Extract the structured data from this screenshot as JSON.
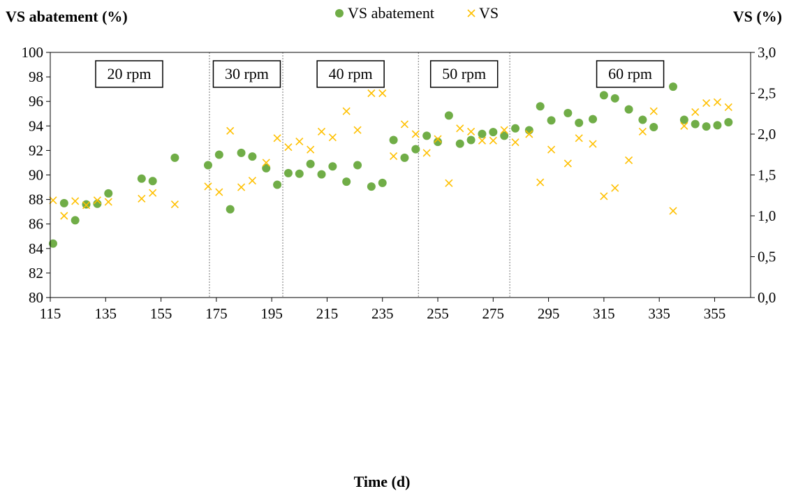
{
  "chart_data": {
    "type": "scatter",
    "left_axis_title": "VS abatement (%)",
    "right_axis_title": "VS (%)",
    "xlabel": "Time (d)",
    "xlim": [
      115,
      368
    ],
    "xticks": [
      115,
      135,
      155,
      175,
      195,
      215,
      235,
      255,
      275,
      295,
      315,
      335,
      355
    ],
    "y_left": {
      "lim": [
        80,
        100
      ],
      "ticks": [
        "80",
        "82",
        "84",
        "86",
        "88",
        "90",
        "92",
        "94",
        "96",
        "98",
        "100"
      ]
    },
    "y_right": {
      "lim": [
        0,
        3
      ],
      "ticks": [
        "0,0",
        "0,5",
        "1,0",
        "1,5",
        "2,0",
        "2,5",
        "3,0"
      ]
    },
    "grid": false,
    "legend_position": "top-center",
    "phase_boundaries": [
      172.5,
      199,
      248,
      281
    ],
    "phases": [
      {
        "label": "20 rpm",
        "x_center": 143.5
      },
      {
        "label": "30 rpm",
        "x_center": 186
      },
      {
        "label": "40 rpm",
        "x_center": 223.5
      },
      {
        "label": "50 rpm",
        "x_center": 264.5
      },
      {
        "label": "60 rpm",
        "x_center": 324.5
      }
    ],
    "series": [
      {
        "name": "VS abatement",
        "axis": "left",
        "marker": "circle",
        "color": "#70ad47",
        "points": [
          [
            116,
            84.4
          ],
          [
            120,
            87.7
          ],
          [
            124,
            86.3
          ],
          [
            128,
            87.6
          ],
          [
            132,
            87.65
          ],
          [
            136,
            88.5
          ],
          [
            148,
            89.7
          ],
          [
            152,
            89.5
          ],
          [
            160,
            91.4
          ],
          [
            172,
            90.8
          ],
          [
            176,
            91.65
          ],
          [
            180,
            87.2
          ],
          [
            184,
            91.8
          ],
          [
            188,
            91.5
          ],
          [
            193,
            90.55
          ],
          [
            197,
            89.2
          ],
          [
            201,
            90.15
          ],
          [
            205,
            90.1
          ],
          [
            209,
            90.9
          ],
          [
            213,
            90.05
          ],
          [
            217,
            90.7
          ],
          [
            222,
            89.45
          ],
          [
            226,
            90.8
          ],
          [
            231,
            89.05
          ],
          [
            235,
            89.35
          ],
          [
            239,
            92.85
          ],
          [
            243,
            91.4
          ],
          [
            247,
            92.1
          ],
          [
            251,
            93.2
          ],
          [
            255,
            92.7
          ],
          [
            259,
            94.85
          ],
          [
            263,
            92.55
          ],
          [
            267,
            92.85
          ],
          [
            271,
            93.35
          ],
          [
            275,
            93.5
          ],
          [
            279,
            93.2
          ],
          [
            283,
            93.8
          ],
          [
            288,
            93.65
          ],
          [
            292,
            95.6
          ],
          [
            296,
            94.45
          ],
          [
            302,
            95.05
          ],
          [
            306,
            94.25
          ],
          [
            311,
            94.55
          ],
          [
            315,
            96.5
          ],
          [
            319,
            96.25
          ],
          [
            324,
            95.35
          ],
          [
            329,
            94.5
          ],
          [
            333,
            93.9
          ],
          [
            340,
            97.2
          ],
          [
            344,
            94.5
          ],
          [
            348,
            94.15
          ],
          [
            352,
            93.95
          ],
          [
            356,
            94.05
          ],
          [
            360,
            94.3
          ]
        ]
      },
      {
        "name": "VS",
        "axis": "right",
        "marker": "x",
        "color": "#ffc000",
        "points": [
          [
            116,
            1.19
          ],
          [
            120,
            1.0
          ],
          [
            124,
            1.18
          ],
          [
            128,
            1.13
          ],
          [
            132,
            1.19
          ],
          [
            136,
            1.17
          ],
          [
            148,
            1.21
          ],
          [
            152,
            1.28
          ],
          [
            160,
            1.14
          ],
          [
            172,
            1.36
          ],
          [
            176,
            1.29
          ],
          [
            180,
            2.04
          ],
          [
            184,
            1.35
          ],
          [
            188,
            1.43
          ],
          [
            193,
            1.65
          ],
          [
            197,
            1.95
          ],
          [
            201,
            1.84
          ],
          [
            205,
            1.91
          ],
          [
            209,
            1.81
          ],
          [
            213,
            2.03
          ],
          [
            217,
            1.96
          ],
          [
            222,
            2.28
          ],
          [
            226,
            2.05
          ],
          [
            231,
            2.5
          ],
          [
            235,
            2.5
          ],
          [
            239,
            1.73
          ],
          [
            243,
            2.12
          ],
          [
            247,
            2.0
          ],
          [
            251,
            1.77
          ],
          [
            255,
            1.94
          ],
          [
            259,
            1.4
          ],
          [
            263,
            2.07
          ],
          [
            267,
            2.03
          ],
          [
            271,
            1.92
          ],
          [
            275,
            1.92
          ],
          [
            279,
            2.05
          ],
          [
            283,
            1.9
          ],
          [
            288,
            2.0
          ],
          [
            292,
            1.41
          ],
          [
            296,
            1.81
          ],
          [
            302,
            1.64
          ],
          [
            306,
            1.95
          ],
          [
            311,
            1.88
          ],
          [
            315,
            1.24
          ],
          [
            319,
            1.34
          ],
          [
            324,
            1.68
          ],
          [
            329,
            2.03
          ],
          [
            333,
            2.28
          ],
          [
            340,
            1.06
          ],
          [
            344,
            2.1
          ],
          [
            348,
            2.27
          ],
          [
            352,
            2.38
          ],
          [
            356,
            2.39
          ],
          [
            360,
            2.33
          ]
        ]
      }
    ]
  }
}
